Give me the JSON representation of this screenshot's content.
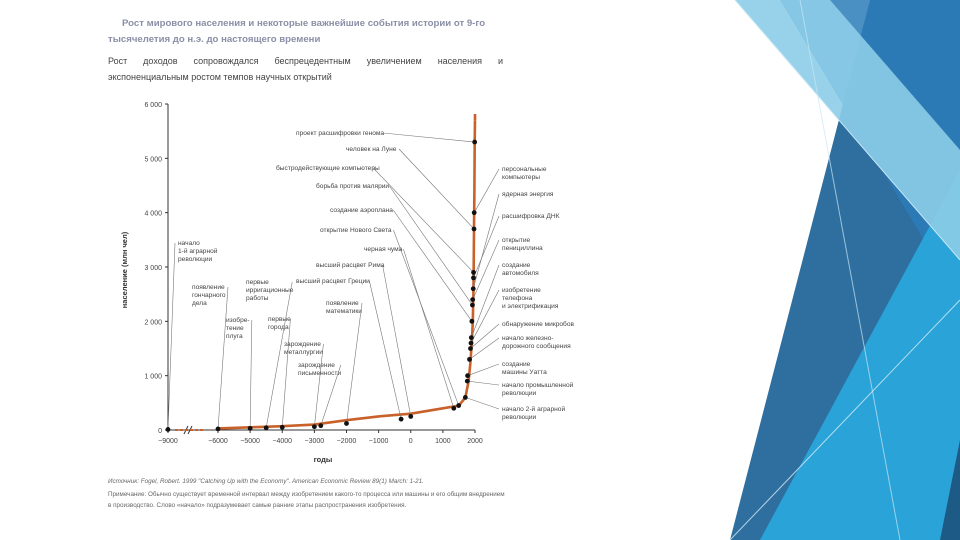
{
  "header": {
    "title": "Рост мирового населения и некоторые важнейшие события истории от 9-го тысячелетия до н.э. до настоящего времени",
    "intro": "Рост доходов сопровождался беспрецедентным увеличением населения и экспоненциальным ростом темпов научных открытий"
  },
  "footer": {
    "source": "Источник: Fogel, Robert. 1999 \"Catching Up with the Economy\". American Economic Review 89(1) March: 1-21.",
    "note": "Примечание: Обычно существует временной интервал между изобретением какого-то процесса или машины и его общим внедрением в производство. Слово «начало» подразумевает самые ранние этапы распространения изобретения."
  },
  "colors": {
    "series": "#c8612a",
    "point": "#111111",
    "axis": "#333333",
    "leader": "#777777",
    "label": "#444444"
  },
  "chart_data": {
    "type": "line",
    "title": "",
    "xlabel": "годы",
    "ylabel": "население (млн чел)",
    "xlim": [
      -9000,
      2000
    ],
    "ylim": [
      0,
      6000
    ],
    "x_ticks": [
      "−9000",
      "−6000",
      "−5000",
      "−4000",
      "−3000",
      "−2000",
      "−1000",
      "0",
      "1000",
      "2000"
    ],
    "x_tick_values": [
      -9000,
      -6000,
      -5000,
      -4000,
      -3000,
      -2000,
      -1000,
      0,
      1000,
      2000
    ],
    "y_ticks": [
      "0",
      "1 000",
      "2 000",
      "3 000",
      "4 000",
      "5 000",
      "6 000"
    ],
    "y_tick_values": [
      0,
      1000,
      2000,
      3000,
      4000,
      5000,
      6000
    ],
    "axis_break": true,
    "series": [
      {
        "x": [
          -6000,
          -5000,
          -4000,
          -3000,
          -2000,
          -1000,
          0,
          1000,
          1500,
          1700,
          1800,
          1850,
          1900,
          1930,
          1950,
          1960,
          1970,
          1980,
          1990,
          2000
        ],
        "y": [
          30,
          50,
          70,
          100,
          180,
          250,
          300,
          400,
          450,
          600,
          900,
          1200,
          1600,
          2000,
          2500,
          3000,
          3700,
          4400,
          5300,
          5700
        ]
      }
    ],
    "events": [
      {
        "label": "начало 1-й аграрной революции",
        "x": -9000,
        "y": 10
      },
      {
        "label": "появление гончарного дела",
        "x": -6000,
        "y": 20
      },
      {
        "label": "изобре-тение плуга",
        "x": -5000,
        "y": 30
      },
      {
        "label": "первые ирригационные работы",
        "x": -4500,
        "y": 40
      },
      {
        "label": "первые города",
        "x": -4000,
        "y": 50
      },
      {
        "label": "зарождение металлургии",
        "x": -3000,
        "y": 60
      },
      {
        "label": "зарождение письменности",
        "x": -2800,
        "y": 80
      },
      {
        "label": "появление математики",
        "x": -2000,
        "y": 120
      },
      {
        "label": "высший расцвет Греции",
        "x": -300,
        "y": 200
      },
      {
        "label": "высший расцвет Рима",
        "x": 0,
        "y": 250
      },
      {
        "label": "черная чума",
        "x": 1340,
        "y": 400
      },
      {
        "label": "открытие Нового Света",
        "x": 1492,
        "y": 450
      },
      {
        "label": "начало 2-й аграрной революции",
        "x": 1700,
        "y": 600
      },
      {
        "label": "начало промышленной революции",
        "x": 1760,
        "y": 900
      },
      {
        "label": "создание машины Уатта",
        "x": 1769,
        "y": 1000
      },
      {
        "label": "начало железнодорожного сообщения",
        "x": 1830,
        "y": 1300
      },
      {
        "label": "обнаружение микробов",
        "x": 1860,
        "y": 1500
      },
      {
        "label": "изобретение телефона и электрификация",
        "x": 1876,
        "y": 1600
      },
      {
        "label": "создание автомобиля",
        "x": 1886,
        "y": 1700
      },
      {
        "label": "создание аэроплана",
        "x": 1903,
        "y": 2000
      },
      {
        "label": "борьба против малярии",
        "x": 1920,
        "y": 2300
      },
      {
        "label": "открытие пенициллина",
        "x": 1928,
        "y": 2400
      },
      {
        "label": "расшифровка ДНК",
        "x": 1953,
        "y": 2800
      },
      {
        "label": "ядерная энергия",
        "x": 1945,
        "y": 2600
      },
      {
        "label": "быстродействующие компьютеры",
        "x": 1955,
        "y": 2900
      },
      {
        "label": "человек на Луне",
        "x": 1969,
        "y": 3700
      },
      {
        "label": "персональные компьютеры",
        "x": 1975,
        "y": 4000
      },
      {
        "label": "проект расшифровки генома",
        "x": 1990,
        "y": 5300
      }
    ],
    "grid": false,
    "legend": "none"
  }
}
